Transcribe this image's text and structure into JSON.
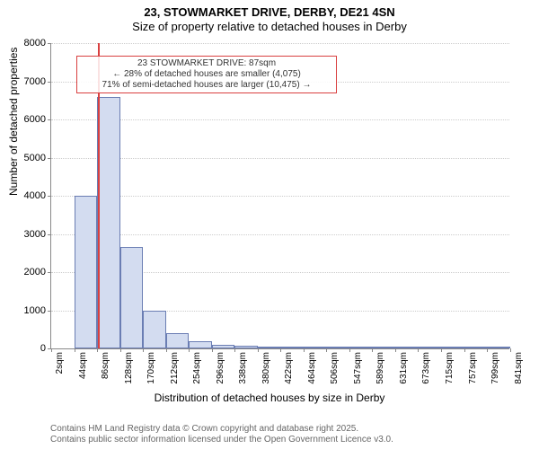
{
  "title": {
    "line1": "23, STOWMARKET DRIVE, DERBY, DE21 4SN",
    "line2": "Size of property relative to detached houses in Derby"
  },
  "chart": {
    "type": "bar",
    "background_color": "#ffffff",
    "grid_color": "#cccccc",
    "axis_color": "#888888",
    "ylim": [
      0,
      8000
    ],
    "ytick_step": 1000,
    "yticks": [
      0,
      1000,
      2000,
      3000,
      4000,
      5000,
      6000,
      7000,
      8000
    ],
    "xlabel": "Distribution of detached houses by size in Derby",
    "ylabel": "Number of detached properties",
    "label_fontsize": 12,
    "tick_fontsize": 11,
    "bar_fill": "#d3dcf0",
    "bar_border": "#6a7db3",
    "highlight_color": "#d94040",
    "highlight_value_sqm": 87,
    "x_min": 2,
    "x_max": 841,
    "x_bin_width": 42,
    "x_categories": [
      "2sqm",
      "44sqm",
      "86sqm",
      "128sqm",
      "170sqm",
      "212sqm",
      "254sqm",
      "296sqm",
      "338sqm",
      "380sqm",
      "422sqm",
      "464sqm",
      "506sqm",
      "547sqm",
      "589sqm",
      "631sqm",
      "673sqm",
      "715sqm",
      "757sqm",
      "799sqm",
      "841sqm"
    ],
    "values": [
      0,
      4000,
      6600,
      2650,
      1000,
      400,
      200,
      100,
      60,
      40,
      25,
      15,
      12,
      10,
      8,
      6,
      5,
      4,
      3,
      2
    ]
  },
  "annotation": {
    "border_color": "#d94040",
    "text_color": "#333333",
    "line1": "23 STOWMARKET DRIVE: 87sqm",
    "line2": "← 28% of detached houses are smaller (4,075)",
    "line3": "71% of semi-detached houses are larger (10,475) →"
  },
  "footer": {
    "line1": "Contains HM Land Registry data © Crown copyright and database right 2025.",
    "line2": "Contains public sector information licensed under the Open Government Licence v3.0."
  }
}
